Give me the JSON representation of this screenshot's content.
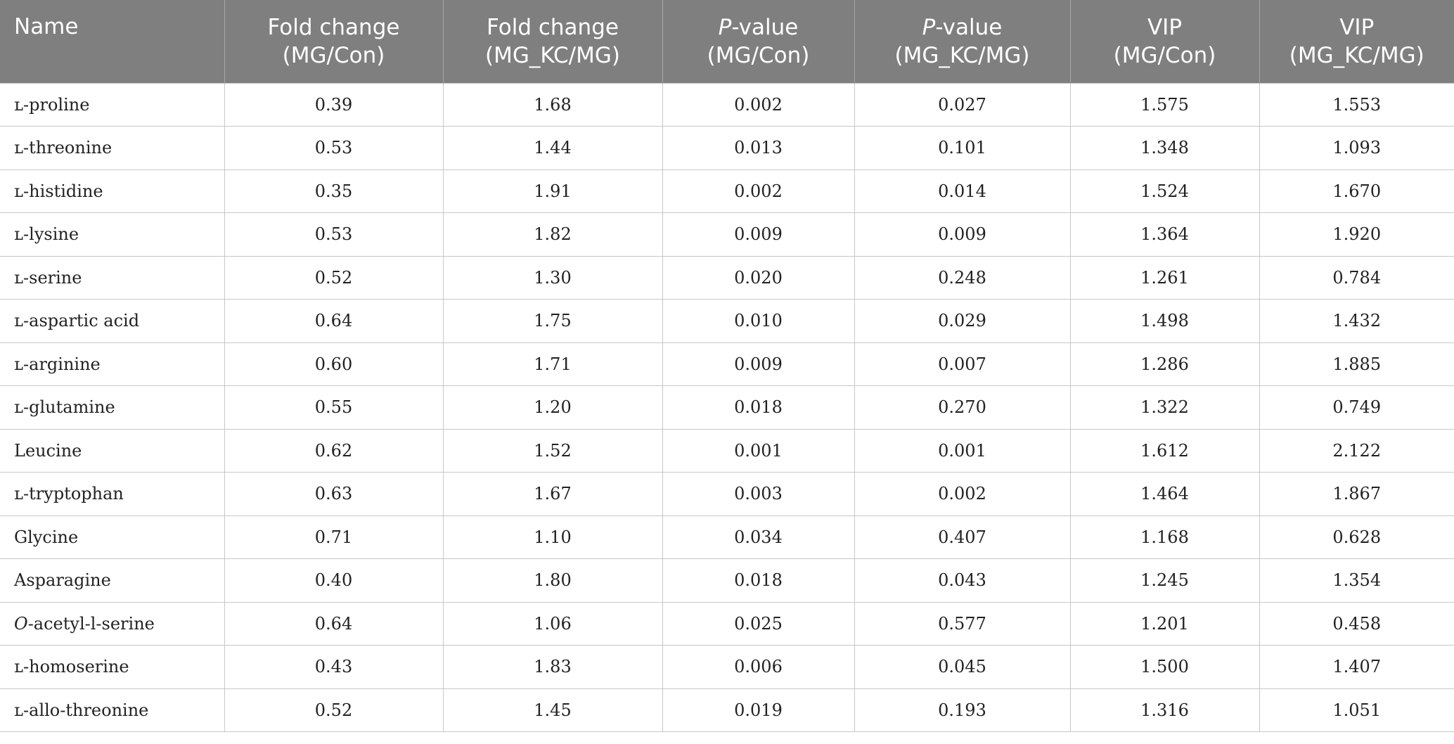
{
  "table": {
    "columns": [
      {
        "lines": [
          "Name"
        ]
      },
      {
        "lines": [
          "Fold change",
          "(MG/Con)"
        ]
      },
      {
        "lines": [
          "Fold change",
          "(MG_KC/MG)"
        ]
      },
      {
        "italic": "P",
        "lines": [
          "-value",
          "(MG/Con)"
        ]
      },
      {
        "italic": "P",
        "lines": [
          "-value",
          "(MG_KC/MG)"
        ]
      },
      {
        "lines": [
          "VIP",
          "(MG/Con)"
        ]
      },
      {
        "lines": [
          "VIP",
          "(MG_KC/MG)"
        ]
      }
    ],
    "rows": [
      {
        "name": "ʟ-proline",
        "values": [
          "0.39",
          "1.68",
          "0.002",
          "0.027",
          "1.575",
          "1.553"
        ]
      },
      {
        "name": "ʟ-threonine",
        "values": [
          "0.53",
          "1.44",
          "0.013",
          "0.101",
          "1.348",
          "1.093"
        ]
      },
      {
        "name": "ʟ-histidine",
        "values": [
          "0.35",
          "1.91",
          "0.002",
          "0.014",
          "1.524",
          "1.670"
        ]
      },
      {
        "name": "ʟ-lysine",
        "values": [
          "0.53",
          "1.82",
          "0.009",
          "0.009",
          "1.364",
          "1.920"
        ]
      },
      {
        "name": "ʟ-serine",
        "values": [
          "0.52",
          "1.30",
          "0.020",
          "0.248",
          "1.261",
          "0.784"
        ]
      },
      {
        "name": "ʟ-aspartic acid",
        "values": [
          "0.64",
          "1.75",
          "0.010",
          "0.029",
          "1.498",
          "1.432"
        ]
      },
      {
        "name": "ʟ-arginine",
        "values": [
          "0.60",
          "1.71",
          "0.009",
          "0.007",
          "1.286",
          "1.885"
        ]
      },
      {
        "name": "ʟ-glutamine",
        "values": [
          "0.55",
          "1.20",
          "0.018",
          "0.270",
          "1.322",
          "0.749"
        ]
      },
      {
        "name": "Leucine",
        "values": [
          "0.62",
          "1.52",
          "0.001",
          "0.001",
          "1.612",
          "2.122"
        ]
      },
      {
        "name": "ʟ-tryptophan",
        "values": [
          "0.63",
          "1.67",
          "0.003",
          "0.002",
          "1.464",
          "1.867"
        ]
      },
      {
        "name": "Glycine",
        "values": [
          "0.71",
          "1.10",
          "0.034",
          "0.407",
          "1.168",
          "0.628"
        ]
      },
      {
        "name": "Asparagine",
        "values": [
          "0.40",
          "1.80",
          "0.018",
          "0.043",
          "1.245",
          "1.354"
        ]
      },
      {
        "name_italic": "O",
        "name": "-acetyl-l-serine",
        "values": [
          "0.64",
          "1.06",
          "0.025",
          "0.577",
          "1.201",
          "0.458"
        ]
      },
      {
        "name": "ʟ-homoserine",
        "values": [
          "0.43",
          "1.83",
          "0.006",
          "0.045",
          "1.500",
          "1.407"
        ]
      },
      {
        "name": "ʟ-allo-threonine",
        "values": [
          "0.52",
          "1.45",
          "0.019",
          "0.193",
          "1.316",
          "1.051"
        ]
      }
    ]
  }
}
